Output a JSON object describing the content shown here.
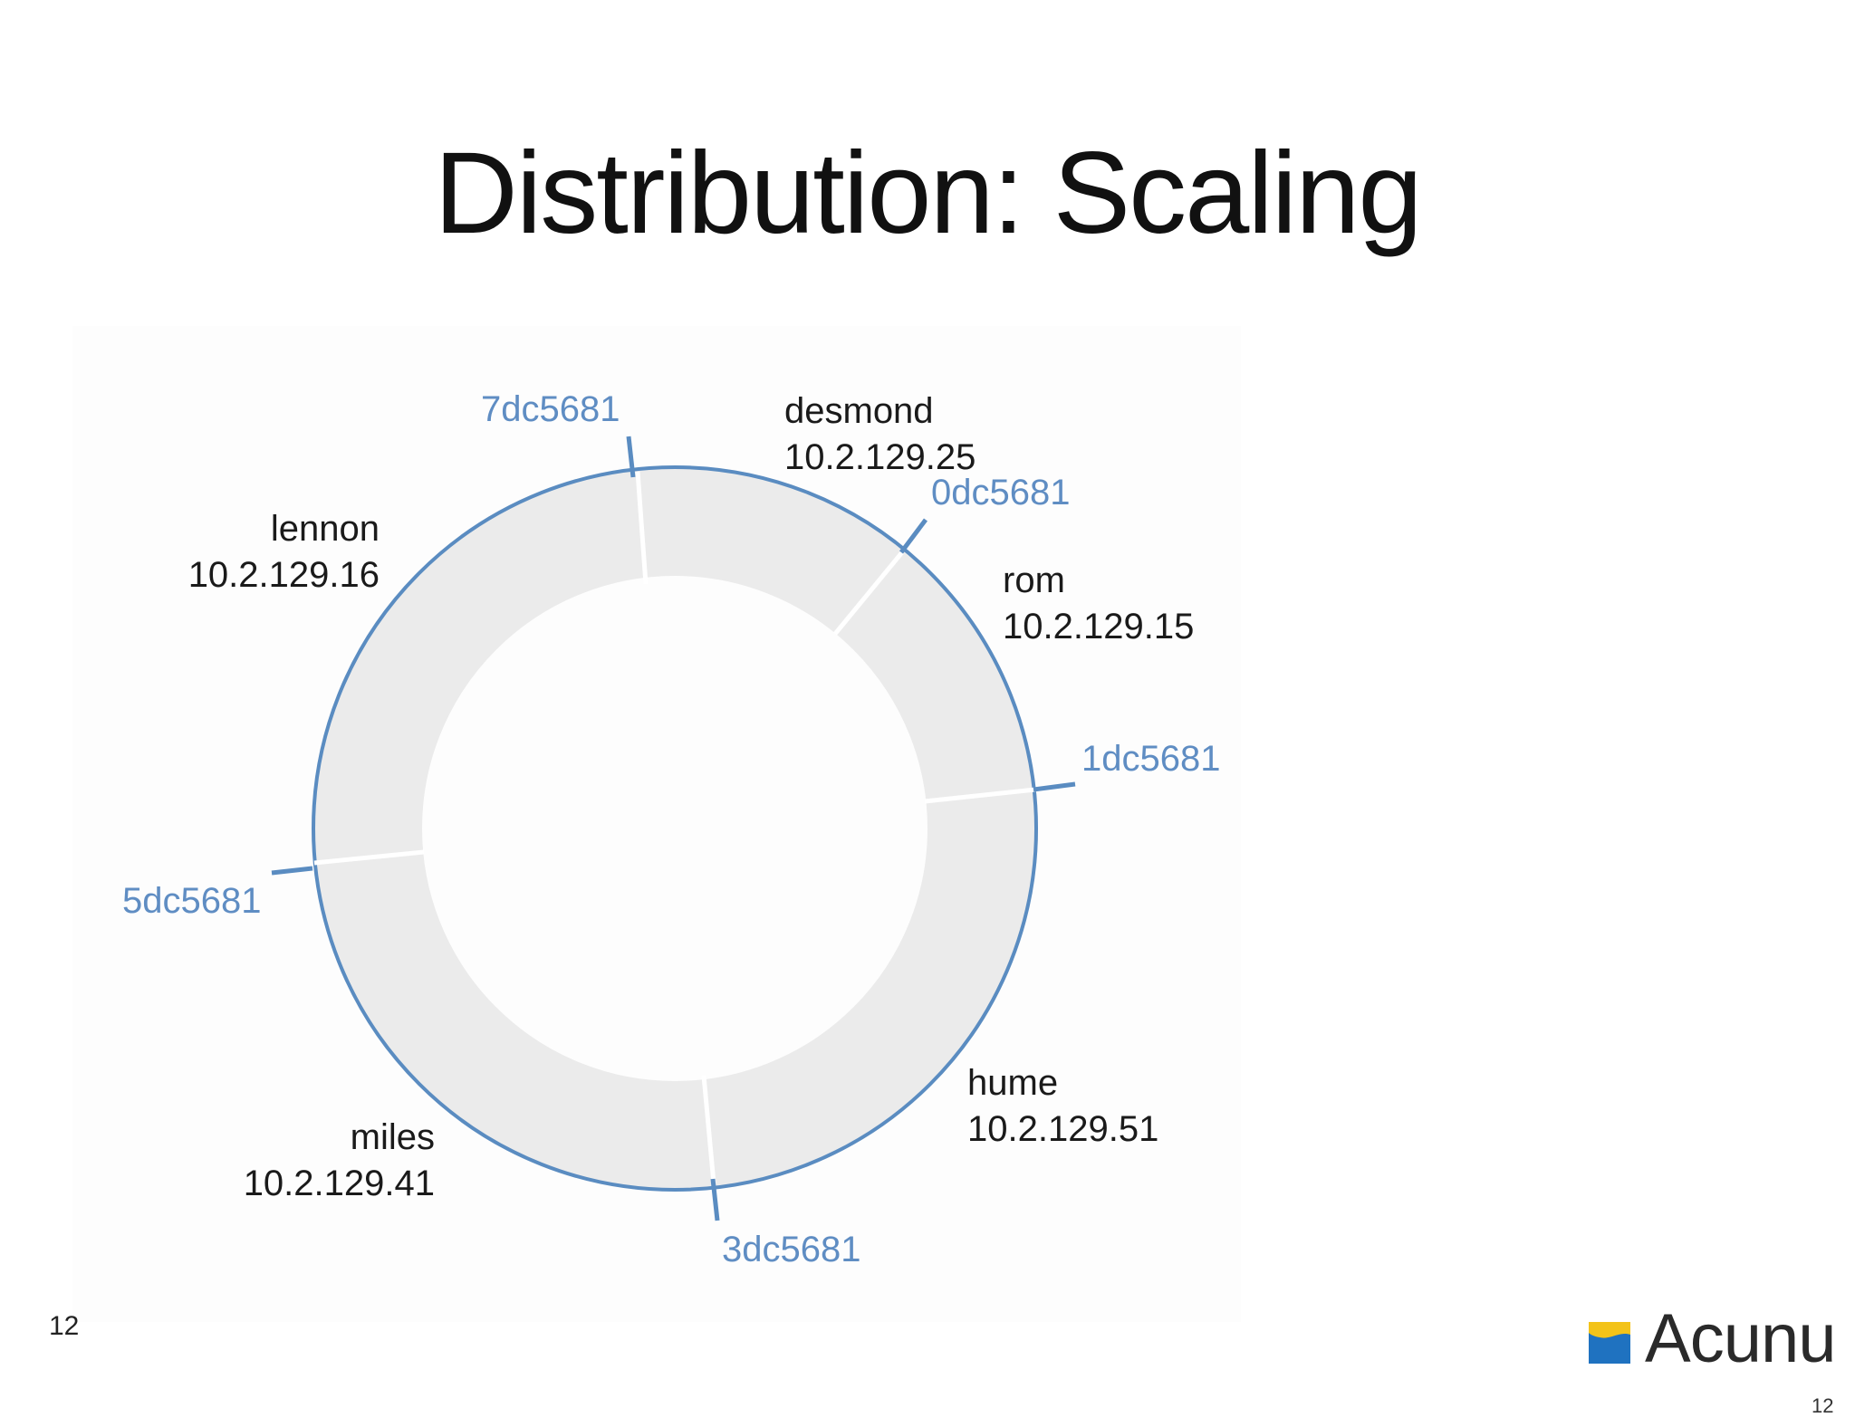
{
  "slide": {
    "title": "Distribution: Scaling",
    "footer_left": "12",
    "page_number": "12",
    "logo_text": "Acunu",
    "logo_colors": {
      "top": "#f3c319",
      "bottom": "#1f72c0"
    }
  },
  "ring": {
    "colors": {
      "ring_stroke": "#5a8cc1",
      "segment_fill": "#ebebeb",
      "token_text": "#5f8dc3",
      "node_text": "#1a1a1a"
    },
    "tokens": [
      {
        "label": "7dc5681"
      },
      {
        "label": "0dc5681"
      },
      {
        "label": "1dc5681"
      },
      {
        "label": "3dc5681"
      },
      {
        "label": "5dc5681"
      }
    ],
    "nodes": [
      {
        "name": "desmond",
        "ip": "10.2.129.25"
      },
      {
        "name": "rom",
        "ip": "10.2.129.15"
      },
      {
        "name": "hume",
        "ip": "10.2.129.51"
      },
      {
        "name": "miles",
        "ip": "10.2.129.41"
      },
      {
        "name": "lennon",
        "ip": "10.2.129.16"
      }
    ]
  }
}
